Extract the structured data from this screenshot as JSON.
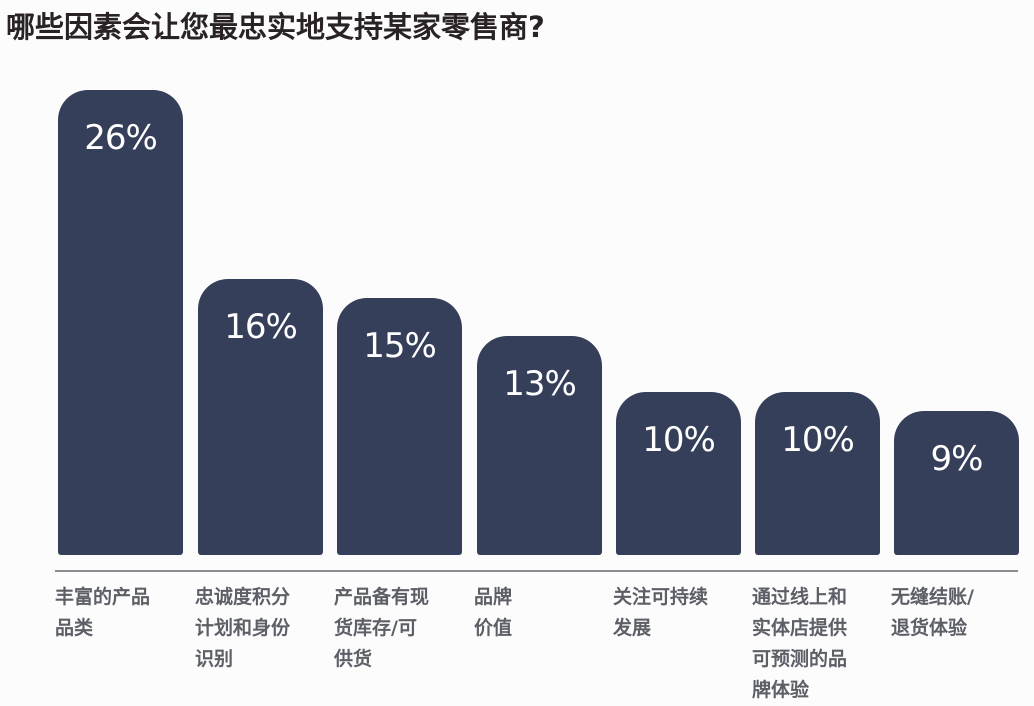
{
  "chart_data": {
    "type": "bar",
    "title": "哪些因素会让您最忠实地支持某家零售商?",
    "categories": [
      "丰富的产品品类",
      "忠诚度积分计划和身份识别",
      "产品备有现货库存/可供货",
      "品牌价值",
      "关注可持续发展",
      "通过线上和实体店提供可预测的品牌体验",
      "无缝结账/退货体验"
    ],
    "values": [
      26,
      16,
      15,
      13,
      10,
      10,
      9
    ],
    "value_labels": [
      "26%",
      "16%",
      "15%",
      "13%",
      "10%",
      "10%",
      "9%"
    ],
    "xlabel": "",
    "ylabel": "",
    "unit": "%",
    "grid": false,
    "legend": null,
    "bar_color": "#363f5a",
    "label_lines": [
      [
        "丰富的产品",
        "品类"
      ],
      [
        "忠诚度积分",
        "计划和身份",
        "识别"
      ],
      [
        "产品备有现",
        "货库存/可",
        "供货"
      ],
      [
        "品牌",
        "价值"
      ],
      [
        "关注可持续",
        "发展"
      ],
      [
        "通过线上和",
        "实体店提供",
        "可预测的品",
        "牌体验"
      ],
      [
        "无缝结账/",
        "退货体验"
      ]
    ]
  }
}
